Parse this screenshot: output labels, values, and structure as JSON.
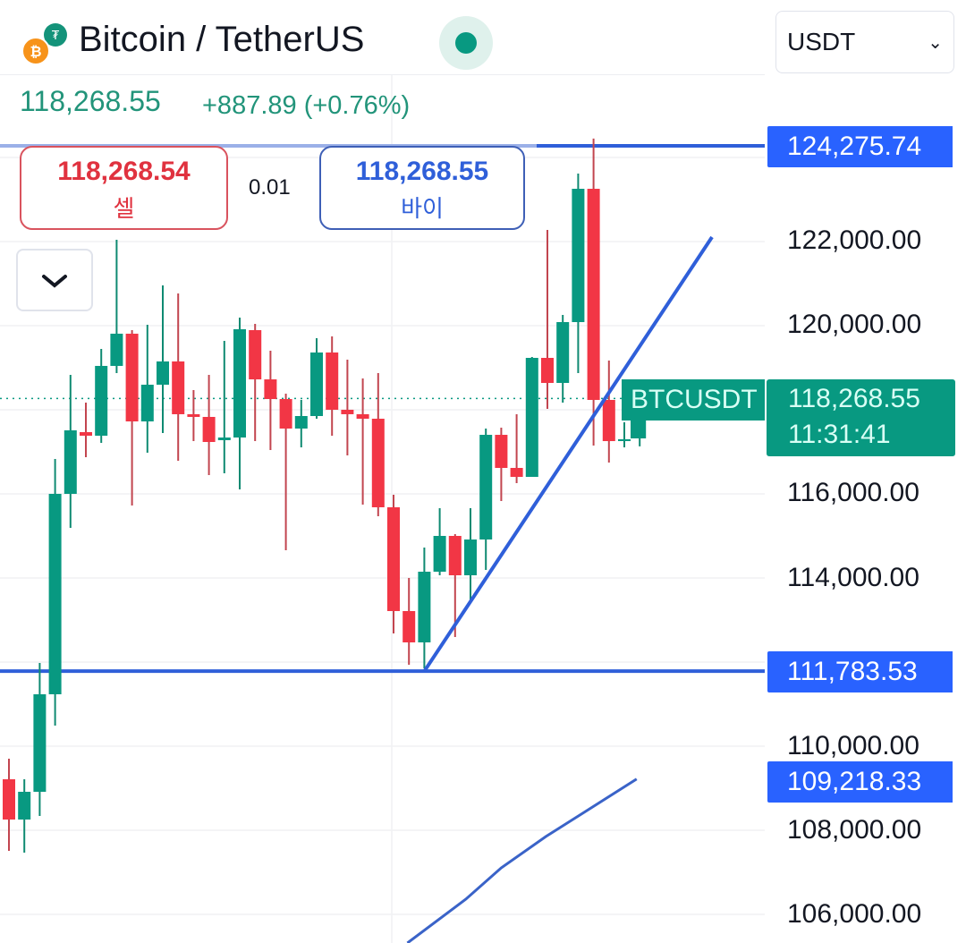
{
  "header": {
    "title": "Bitcoin / TetherUS",
    "market_status": "open",
    "status_color": "#089981",
    "currency_select": "USDT",
    "icons": [
      "bitcoin-icon",
      "tether-icon",
      "chevron-down-icon"
    ]
  },
  "quote": {
    "last_price": "118,268.55",
    "change": "+887.89 (+0.76%)"
  },
  "trade": {
    "sell_price": "118,268.54",
    "sell_label": "셀",
    "spread": "0.01",
    "buy_price": "118,268.55",
    "buy_label": "바이"
  },
  "price_axis": {
    "labels": [
      "122,000.00",
      "120,000.00",
      "116,000.00",
      "114,000.00",
      "110,000.00",
      "108,000.00",
      "106,000.00"
    ],
    "levels": [
      {
        "label": "124,275.74",
        "value": 124275.74
      },
      {
        "label": "111,783.53",
        "value": 111783.53
      },
      {
        "label": "109,218.33",
        "value": 109218.33
      }
    ],
    "current": {
      "symbol": "BTCUSDT",
      "price": "118,268.55",
      "countdown": "11:31:41"
    }
  },
  "colors": {
    "up": "#089981",
    "down": "#f23645",
    "drawing": "#2f5fd9",
    "level": "#2962ff"
  },
  "chart_data": {
    "type": "candlestick",
    "yticks": [
      106000,
      108000,
      110000,
      114000,
      116000,
      120000,
      122000
    ],
    "ohlc": [
      [
        109213,
        109702,
        107510,
        108255
      ],
      [
        108255,
        109213,
        107468,
        108915
      ],
      [
        108915,
        111979,
        108340,
        111234
      ],
      [
        111234,
        116830,
        110489,
        116000
      ],
      [
        116000,
        118830,
        115191,
        117511
      ],
      [
        117468,
        118170,
        116872,
        117383
      ],
      [
        117383,
        119447,
        117213,
        119043
      ],
      [
        119043,
        122043,
        118872,
        119809
      ],
      [
        119809,
        119894,
        115723,
        117723
      ],
      [
        117723,
        120021,
        116979,
        118596
      ],
      [
        118596,
        120957,
        117447,
        119149
      ],
      [
        119149,
        120766,
        116787,
        117894
      ],
      [
        117894,
        118468,
        117255,
        117830
      ],
      [
        117830,
        118830,
        116447,
        117234
      ],
      [
        117277,
        119638,
        116489,
        117340
      ],
      [
        117340,
        120191,
        116106,
        119915
      ],
      [
        119894,
        120043,
        117255,
        118723
      ],
      [
        118723,
        119404,
        117043,
        118255
      ],
      [
        118255,
        118383,
        114659,
        117553
      ],
      [
        117553,
        118234,
        117106,
        117851
      ],
      [
        117851,
        119702,
        117787,
        119362
      ],
      [
        119362,
        119745,
        117383,
        118000
      ],
      [
        118000,
        119191,
        116915,
        117894
      ],
      [
        117894,
        118745,
        115745,
        117787
      ],
      [
        117787,
        118872,
        115468,
        115681
      ],
      [
        115681,
        115979,
        112681,
        113213
      ],
      [
        113213,
        114000,
        111936,
        112468
      ],
      [
        112468,
        114723,
        111851,
        114149
      ],
      [
        114149,
        115660,
        114064,
        115000
      ],
      [
        115000,
        115043,
        112596,
        114064
      ],
      [
        114064,
        115660,
        113447,
        114915
      ],
      [
        114915,
        117553,
        114191,
        117404
      ],
      [
        117404,
        117574,
        115830,
        116617
      ],
      [
        116617,
        117894,
        116255,
        116404
      ],
      [
        116404,
        119255,
        116404,
        119234
      ],
      [
        119234,
        122277,
        118021,
        118638
      ],
      [
        118638,
        120255,
        118170,
        120085
      ],
      [
        120085,
        123617,
        118872,
        123255
      ],
      [
        123255,
        124450,
        117149,
        118234
      ],
      [
        118234,
        119170,
        116745,
        117255
      ],
      [
        117255,
        117702,
        117106,
        117300
      ],
      [
        117319,
        118300,
        117130,
        118268.55
      ]
    ],
    "horizontal_lines": [
      124275.74,
      111783.53
    ],
    "trend_line": {
      "from": {
        "bar": 27,
        "price": 111783.53
      },
      "to": {
        "bar": 45.7,
        "price": 122106
      }
    },
    "indicator_line": [
      {
        "bar": 25.9,
        "price": 105319
      },
      {
        "bar": 29.7,
        "price": 106362
      },
      {
        "bar": 32,
        "price": 107106
      },
      {
        "bar": 34.9,
        "price": 107851
      },
      {
        "bar": 37.2,
        "price": 108383
      },
      {
        "bar": 40.8,
        "price": 109218.33
      }
    ]
  }
}
